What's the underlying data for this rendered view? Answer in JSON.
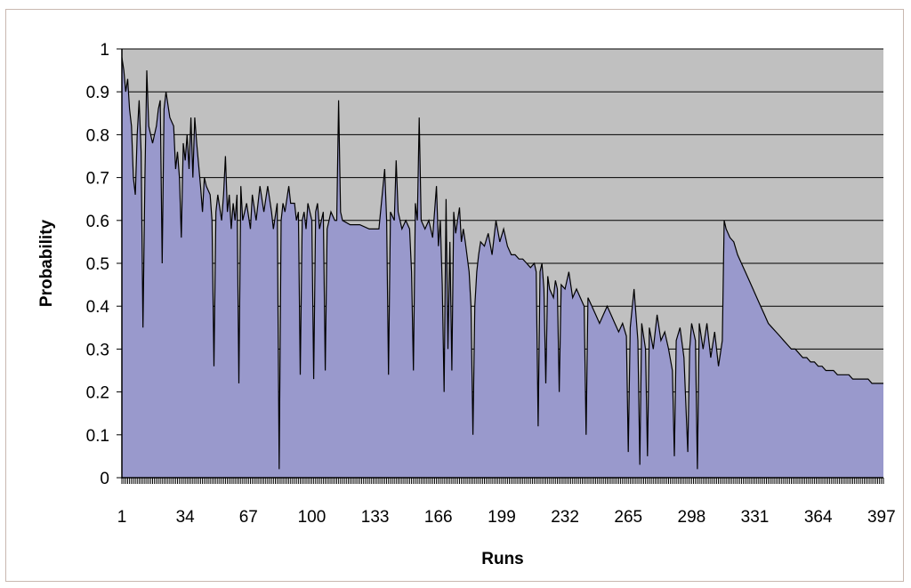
{
  "chart_data": {
    "type": "area",
    "xlabel": "Runs",
    "ylabel": "Probability",
    "xlim": [
      1,
      398
    ],
    "ylim": [
      0,
      1
    ],
    "x_ticks": [
      1,
      34,
      67,
      100,
      133,
      166,
      199,
      232,
      265,
      298,
      331,
      364,
      397
    ],
    "y_ticks": [
      0,
      0.1,
      0.2,
      0.3,
      0.4,
      0.5,
      0.6,
      0.7,
      0.8,
      0.9,
      1
    ],
    "y_tick_labels": [
      "0",
      "0.1",
      "0.2",
      "0.3",
      "0.4",
      "0.5",
      "0.6",
      "0.7",
      "0.8",
      "0.9",
      "1"
    ],
    "grid": "horizontal",
    "colors": {
      "plot_background": "#c0c0c0",
      "fill": "#9999cc",
      "line": "#000000"
    },
    "series": [
      {
        "points": [
          [
            1,
            0.98
          ],
          [
            2,
            0.95
          ],
          [
            3,
            0.9
          ],
          [
            4,
            0.93
          ],
          [
            5,
            0.86
          ],
          [
            6,
            0.82
          ],
          [
            7,
            0.7
          ],
          [
            8,
            0.66
          ],
          [
            9,
            0.8
          ],
          [
            10,
            0.88
          ],
          [
            11,
            0.76
          ],
          [
            12,
            0.35
          ],
          [
            13,
            0.7
          ],
          [
            14,
            0.95
          ],
          [
            15,
            0.82
          ],
          [
            17,
            0.78
          ],
          [
            19,
            0.82
          ],
          [
            20,
            0.86
          ],
          [
            21,
            0.88
          ],
          [
            22,
            0.5
          ],
          [
            23,
            0.86
          ],
          [
            24,
            0.9
          ],
          [
            26,
            0.84
          ],
          [
            28,
            0.82
          ],
          [
            29,
            0.72
          ],
          [
            30,
            0.76
          ],
          [
            31,
            0.7
          ],
          [
            32,
            0.56
          ],
          [
            33,
            0.78
          ],
          [
            34,
            0.74
          ],
          [
            35,
            0.8
          ],
          [
            36,
            0.72
          ],
          [
            37,
            0.84
          ],
          [
            38,
            0.7
          ],
          [
            39,
            0.84
          ],
          [
            40,
            0.78
          ],
          [
            42,
            0.68
          ],
          [
            43,
            0.62
          ],
          [
            44,
            0.7
          ],
          [
            45,
            0.68
          ],
          [
            47,
            0.66
          ],
          [
            48,
            0.6
          ],
          [
            49,
            0.26
          ],
          [
            50,
            0.62
          ],
          [
            51,
            0.66
          ],
          [
            53,
            0.6
          ],
          [
            54,
            0.66
          ],
          [
            55,
            0.75
          ],
          [
            56,
            0.62
          ],
          [
            57,
            0.66
          ],
          [
            58,
            0.58
          ],
          [
            59,
            0.64
          ],
          [
            60,
            0.6
          ],
          [
            61,
            0.66
          ],
          [
            62,
            0.22
          ],
          [
            63,
            0.68
          ],
          [
            64,
            0.6
          ],
          [
            66,
            0.64
          ],
          [
            68,
            0.58
          ],
          [
            69,
            0.66
          ],
          [
            71,
            0.6
          ],
          [
            73,
            0.68
          ],
          [
            75,
            0.62
          ],
          [
            77,
            0.68
          ],
          [
            79,
            0.62
          ],
          [
            80,
            0.58
          ],
          [
            82,
            0.64
          ],
          [
            83,
            0.02
          ],
          [
            84,
            0.6
          ],
          [
            85,
            0.64
          ],
          [
            86,
            0.62
          ],
          [
            88,
            0.68
          ],
          [
            89,
            0.64
          ],
          [
            91,
            0.64
          ],
          [
            92,
            0.6
          ],
          [
            93,
            0.62
          ],
          [
            94,
            0.24
          ],
          [
            95,
            0.6
          ],
          [
            96,
            0.62
          ],
          [
            97,
            0.58
          ],
          [
            98,
            0.64
          ],
          [
            100,
            0.6
          ],
          [
            101,
            0.23
          ],
          [
            102,
            0.62
          ],
          [
            103,
            0.64
          ],
          [
            104,
            0.58
          ],
          [
            106,
            0.62
          ],
          [
            107,
            0.25
          ],
          [
            108,
            0.58
          ],
          [
            109,
            0.6
          ],
          [
            110,
            0.62
          ],
          [
            112,
            0.6
          ],
          [
            113,
            0.6
          ],
          [
            114,
            0.88
          ],
          [
            115,
            0.62
          ],
          [
            116,
            0.6
          ],
          [
            120,
            0.59
          ],
          [
            125,
            0.59
          ],
          [
            130,
            0.58
          ],
          [
            135,
            0.58
          ],
          [
            138,
            0.72
          ],
          [
            139,
            0.6
          ],
          [
            140,
            0.24
          ],
          [
            141,
            0.62
          ],
          [
            143,
            0.6
          ],
          [
            144,
            0.74
          ],
          [
            145,
            0.62
          ],
          [
            147,
            0.58
          ],
          [
            149,
            0.6
          ],
          [
            151,
            0.58
          ],
          [
            152,
            0.48
          ],
          [
            153,
            0.25
          ],
          [
            154,
            0.64
          ],
          [
            155,
            0.6
          ],
          [
            156,
            0.84
          ],
          [
            157,
            0.6
          ],
          [
            159,
            0.58
          ],
          [
            161,
            0.6
          ],
          [
            163,
            0.56
          ],
          [
            165,
            0.68
          ],
          [
            166,
            0.54
          ],
          [
            167,
            0.6
          ],
          [
            168,
            0.45
          ],
          [
            169,
            0.2
          ],
          [
            170,
            0.65
          ],
          [
            171,
            0.3
          ],
          [
            172,
            0.55
          ],
          [
            173,
            0.25
          ],
          [
            174,
            0.62
          ],
          [
            175,
            0.57
          ],
          [
            176,
            0.6
          ],
          [
            177,
            0.63
          ],
          [
            178,
            0.55
          ],
          [
            179,
            0.58
          ],
          [
            180,
            0.55
          ],
          [
            182,
            0.48
          ],
          [
            183,
            0.4
          ],
          [
            184,
            0.1
          ],
          [
            185,
            0.4
          ],
          [
            186,
            0.48
          ],
          [
            187,
            0.52
          ],
          [
            188,
            0.55
          ],
          [
            190,
            0.54
          ],
          [
            192,
            0.57
          ],
          [
            194,
            0.52
          ],
          [
            196,
            0.6
          ],
          [
            198,
            0.55
          ],
          [
            200,
            0.58
          ],
          [
            202,
            0.54
          ],
          [
            204,
            0.52
          ],
          [
            206,
            0.52
          ],
          [
            208,
            0.51
          ],
          [
            210,
            0.51
          ],
          [
            212,
            0.5
          ],
          [
            214,
            0.49
          ],
          [
            216,
            0.5
          ],
          [
            217,
            0.48
          ],
          [
            218,
            0.12
          ],
          [
            219,
            0.48
          ],
          [
            220,
            0.5
          ],
          [
            221,
            0.44
          ],
          [
            222,
            0.22
          ],
          [
            223,
            0.47
          ],
          [
            224,
            0.44
          ],
          [
            226,
            0.42
          ],
          [
            227,
            0.46
          ],
          [
            228,
            0.44
          ],
          [
            229,
            0.2
          ],
          [
            230,
            0.45
          ],
          [
            232,
            0.44
          ],
          [
            234,
            0.48
          ],
          [
            236,
            0.42
          ],
          [
            238,
            0.44
          ],
          [
            240,
            0.42
          ],
          [
            242,
            0.4
          ],
          [
            243,
            0.1
          ],
          [
            244,
            0.42
          ],
          [
            246,
            0.4
          ],
          [
            248,
            0.38
          ],
          [
            250,
            0.36
          ],
          [
            252,
            0.38
          ],
          [
            254,
            0.4
          ],
          [
            256,
            0.38
          ],
          [
            258,
            0.36
          ],
          [
            260,
            0.34
          ],
          [
            262,
            0.36
          ],
          [
            264,
            0.33
          ],
          [
            265,
            0.06
          ],
          [
            266,
            0.35
          ],
          [
            268,
            0.44
          ],
          [
            270,
            0.32
          ],
          [
            271,
            0.03
          ],
          [
            272,
            0.36
          ],
          [
            274,
            0.3
          ],
          [
            275,
            0.05
          ],
          [
            276,
            0.35
          ],
          [
            278,
            0.3
          ],
          [
            280,
            0.38
          ],
          [
            282,
            0.32
          ],
          [
            284,
            0.34
          ],
          [
            286,
            0.3
          ],
          [
            288,
            0.25
          ],
          [
            289,
            0.05
          ],
          [
            290,
            0.32
          ],
          [
            292,
            0.35
          ],
          [
            294,
            0.28
          ],
          [
            296,
            0.06
          ],
          [
            297,
            0.3
          ],
          [
            298,
            0.36
          ],
          [
            300,
            0.32
          ],
          [
            301,
            0.02
          ],
          [
            302,
            0.36
          ],
          [
            304,
            0.3
          ],
          [
            306,
            0.36
          ],
          [
            308,
            0.28
          ],
          [
            310,
            0.34
          ],
          [
            312,
            0.26
          ],
          [
            314,
            0.32
          ],
          [
            315,
            0.6
          ],
          [
            316,
            0.58
          ],
          [
            318,
            0.56
          ],
          [
            320,
            0.55
          ],
          [
            322,
            0.52
          ],
          [
            324,
            0.5
          ],
          [
            326,
            0.48
          ],
          [
            328,
            0.46
          ],
          [
            330,
            0.44
          ],
          [
            332,
            0.42
          ],
          [
            334,
            0.4
          ],
          [
            336,
            0.38
          ],
          [
            338,
            0.36
          ],
          [
            340,
            0.35
          ],
          [
            342,
            0.34
          ],
          [
            344,
            0.33
          ],
          [
            346,
            0.32
          ],
          [
            348,
            0.31
          ],
          [
            350,
            0.3
          ],
          [
            352,
            0.3
          ],
          [
            354,
            0.29
          ],
          [
            356,
            0.28
          ],
          [
            358,
            0.28
          ],
          [
            360,
            0.27
          ],
          [
            362,
            0.27
          ],
          [
            364,
            0.26
          ],
          [
            366,
            0.26
          ],
          [
            368,
            0.25
          ],
          [
            370,
            0.25
          ],
          [
            372,
            0.25
          ],
          [
            374,
            0.24
          ],
          [
            376,
            0.24
          ],
          [
            378,
            0.24
          ],
          [
            380,
            0.24
          ],
          [
            382,
            0.23
          ],
          [
            384,
            0.23
          ],
          [
            386,
            0.23
          ],
          [
            388,
            0.23
          ],
          [
            390,
            0.23
          ],
          [
            392,
            0.22
          ],
          [
            394,
            0.22
          ],
          [
            396,
            0.22
          ],
          [
            398,
            0.22
          ]
        ]
      }
    ]
  }
}
